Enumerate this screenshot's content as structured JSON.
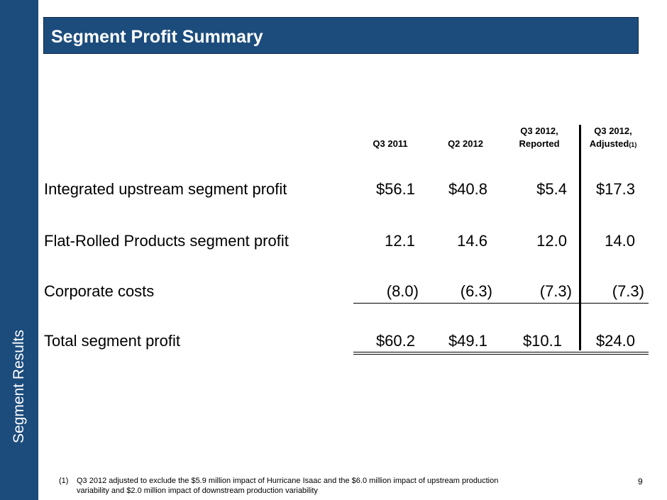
{
  "side_label": "Segment Results",
  "title": "Segment Profit Summary",
  "columns": [
    {
      "line1": "",
      "line2": "Q3 2011"
    },
    {
      "line1": "",
      "line2": "Q2 2012"
    },
    {
      "line1": "Q3 2012,",
      "line2": "Reported"
    },
    {
      "line1": "Q3 2012,",
      "line2": "Adjusted",
      "sup": "(1)"
    }
  ],
  "rows": [
    {
      "label": "Integrated upstream segment profit",
      "values": [
        "$56.1",
        "$40.8",
        "$5.4",
        "$17.3"
      ]
    },
    {
      "label": "Flat-Rolled Products segment profit",
      "values": [
        "12.1",
        "14.6",
        "12.0",
        "14.0"
      ]
    },
    {
      "label": "Corporate costs",
      "values": [
        "(8.0)",
        "(6.3)",
        "(7.3)",
        "(7.3)"
      ]
    },
    {
      "label": "Total segment profit",
      "values": [
        "$60.2",
        "$49.1",
        "$10.1",
        "$24.0"
      ]
    }
  ],
  "footnote": {
    "marker": "(1)",
    "line1": "Q3 2012 adjusted to exclude the $5.9 million impact of Hurricane Isaac and the $6.0 million impact  of upstream production",
    "line2": "variability and $2.0 million impact of downstream production variability"
  },
  "page_number": "9"
}
